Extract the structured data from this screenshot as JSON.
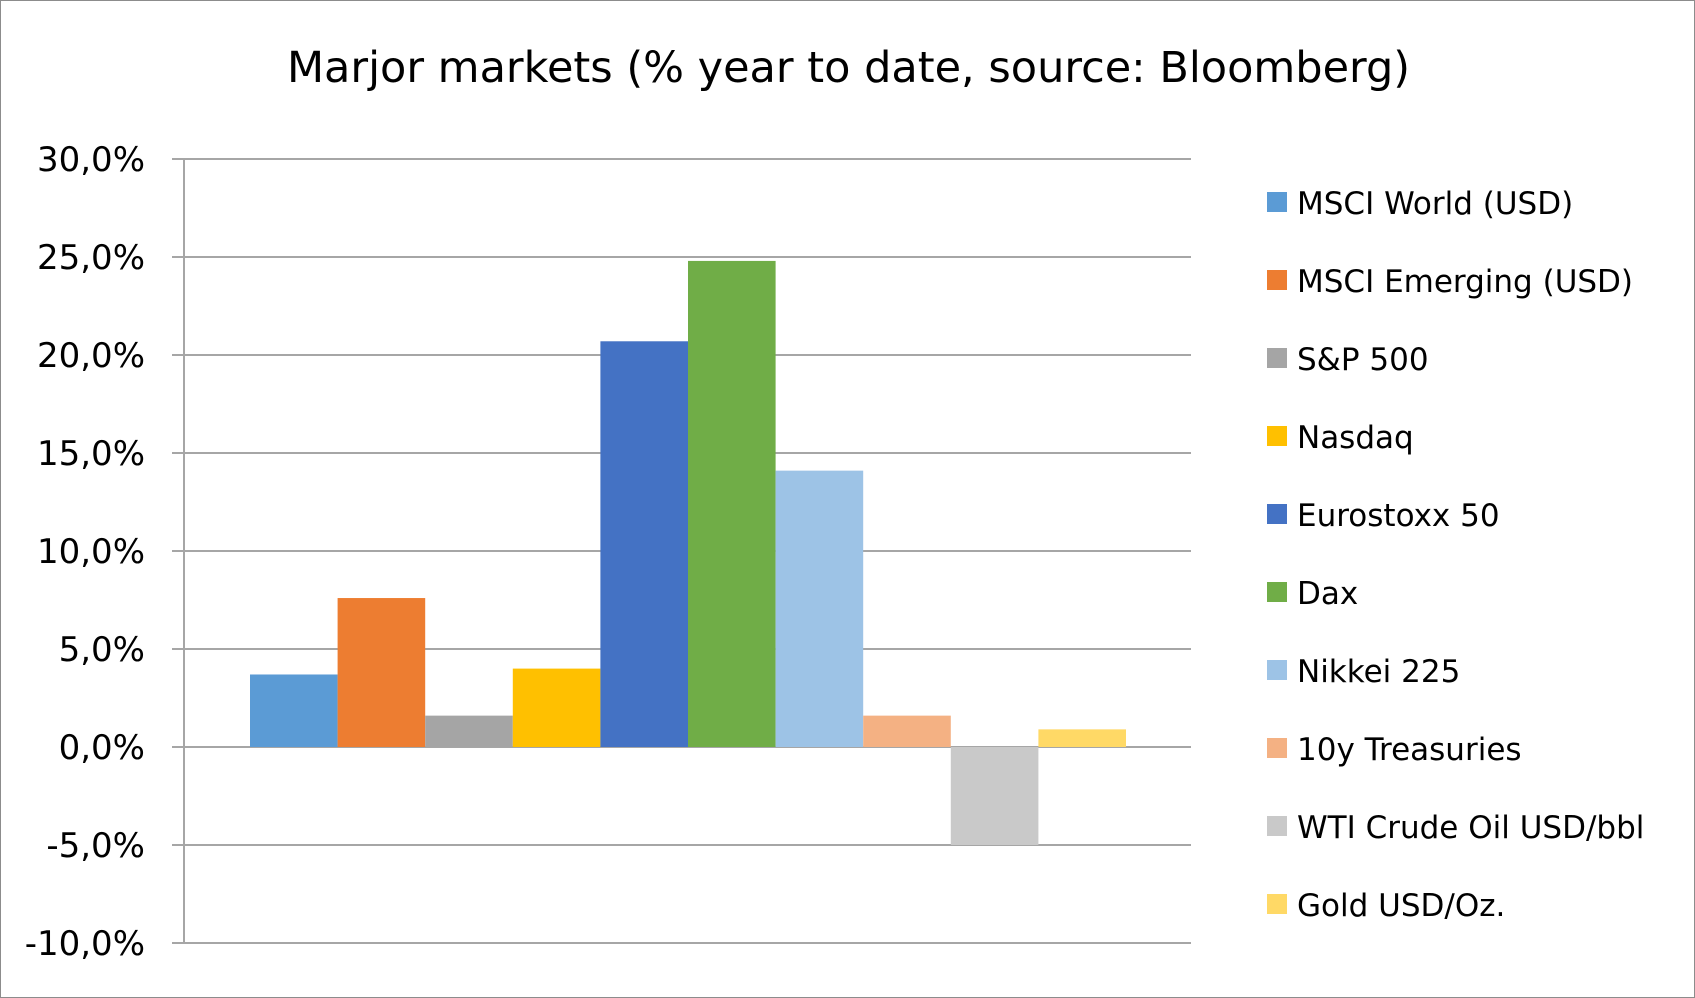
{
  "chart_data": {
    "type": "bar",
    "title": "Marjor markets (% year to date, source: Bloomberg)",
    "xlabel": "",
    "ylabel": "",
    "ylim": [
      -10,
      30
    ],
    "y_ticks": [
      30,
      25,
      20,
      15,
      10,
      5,
      0,
      -5,
      -10
    ],
    "y_tick_labels": [
      "30,0%",
      "25,0%",
      "20,0%",
      "15,0%",
      "10,0%",
      "5,0%",
      "0,0%",
      "-5,0%",
      "-10,0%"
    ],
    "grid": true,
    "legend_position": "right",
    "series": [
      {
        "name": "MSCI World (USD)",
        "value": 3.7,
        "color": "#5B9BD5"
      },
      {
        "name": "MSCI Emerging (USD)",
        "value": 7.6,
        "color": "#ED7D31"
      },
      {
        "name": "S&P 500",
        "value": 1.6,
        "color": "#A5A5A5"
      },
      {
        "name": "Nasdaq",
        "value": 4.0,
        "color": "#FFC000"
      },
      {
        "name": "Eurostoxx 50",
        "value": 20.7,
        "color": "#4472C4"
      },
      {
        "name": "Dax",
        "value": 24.8,
        "color": "#70AD47"
      },
      {
        "name": "Nikkei 225",
        "value": 14.1,
        "color": "#9DC3E6"
      },
      {
        "name": "10y Treasuries",
        "value": 1.6,
        "color": "#F4B183"
      },
      {
        "name": "WTI Crude Oil USD/bbl",
        "value": -5.0,
        "color": "#C9C9C9"
      },
      {
        "name": "Gold USD/Oz.",
        "value": 0.9,
        "color": "#FFD966"
      }
    ]
  }
}
